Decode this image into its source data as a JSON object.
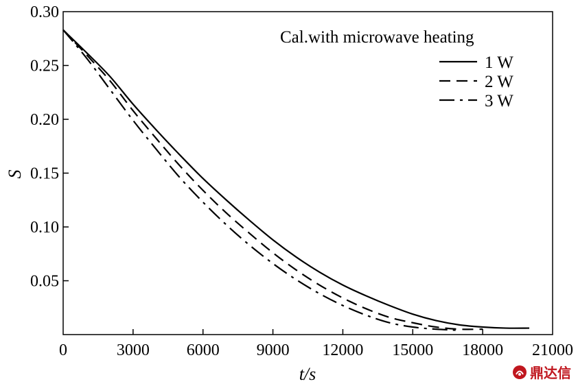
{
  "chart_data": {
    "type": "line",
    "xlabel": "t/s",
    "ylabel": "S",
    "xlim": [
      0,
      21000
    ],
    "ylim": [
      0,
      0.3
    ],
    "x_ticks": [
      "0",
      "3000",
      "6000",
      "9000",
      "12000",
      "15000",
      "18000",
      "21000"
    ],
    "y_ticks": [
      "0.05",
      "0.10",
      "0.15",
      "0.20",
      "0.25",
      "0.30"
    ],
    "grid": false,
    "legend": {
      "title": "Cal.with microwave heating",
      "placement": "top-right"
    },
    "series": [
      {
        "name": "1 W",
        "style": "solid",
        "x": [
          0,
          1000,
          2000,
          3000,
          4000,
          5000,
          6000,
          7000,
          8000,
          9000,
          10000,
          11000,
          12000,
          13000,
          14000,
          15000,
          16000,
          17000,
          18000,
          19000,
          20000
        ],
        "y": [
          0.283,
          0.262,
          0.24,
          0.214,
          0.19,
          0.167,
          0.145,
          0.125,
          0.106,
          0.088,
          0.072,
          0.058,
          0.046,
          0.036,
          0.027,
          0.019,
          0.013,
          0.009,
          0.007,
          0.006,
          0.006
        ]
      },
      {
        "name": "2 W",
        "style": "dashed",
        "x": [
          0,
          1000,
          2000,
          3000,
          4000,
          5000,
          6000,
          7000,
          8000,
          9000,
          10000,
          11000,
          12000,
          13000,
          14000,
          15000,
          16000,
          17000,
          18000
        ],
        "y": [
          0.283,
          0.26,
          0.236,
          0.208,
          0.182,
          0.157,
          0.134,
          0.113,
          0.094,
          0.076,
          0.06,
          0.046,
          0.034,
          0.024,
          0.016,
          0.011,
          0.007,
          0.005,
          0.005
        ]
      },
      {
        "name": "3 W",
        "style": "dash-dot",
        "x": [
          0,
          1000,
          2000,
          3000,
          4000,
          5000,
          6000,
          7000,
          8000,
          9000,
          10000,
          11000,
          12000,
          13000,
          14000,
          15000,
          16000,
          17000
        ],
        "y": [
          0.283,
          0.257,
          0.228,
          0.199,
          0.172,
          0.146,
          0.123,
          0.102,
          0.083,
          0.066,
          0.051,
          0.038,
          0.027,
          0.018,
          0.011,
          0.007,
          0.005,
          0.004
        ]
      }
    ]
  },
  "watermark": {
    "text": "鼎达信",
    "color": "#c0161e"
  }
}
